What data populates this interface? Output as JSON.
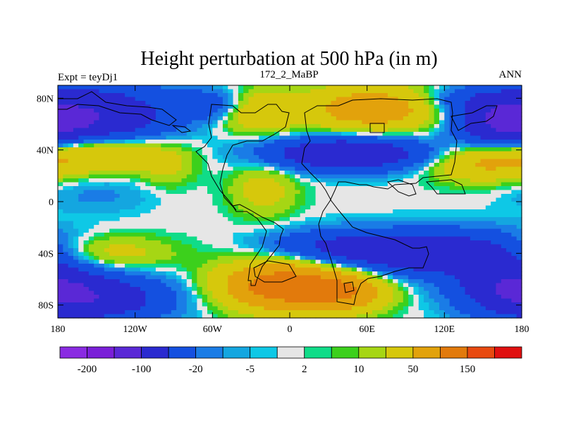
{
  "chart_data": {
    "type": "heatmap",
    "title": "Height perturbation at 500 hPa (in m)",
    "left_string": "Expt = teyDj1",
    "center_string": "172_2_MaBP",
    "right_string": "ANN",
    "xlim": [
      -180,
      180
    ],
    "ylim": [
      -90,
      90
    ],
    "x_ticks": [
      {
        "value": -180,
        "label": "180"
      },
      {
        "value": -120,
        "label": "120W"
      },
      {
        "value": -60,
        "label": "60W"
      },
      {
        "value": 0,
        "label": "0"
      },
      {
        "value": 60,
        "label": "60E"
      },
      {
        "value": 120,
        "label": "120E"
      },
      {
        "value": 180,
        "label": "180"
      }
    ],
    "y_ticks": [
      {
        "value": 80,
        "label": "80N"
      },
      {
        "value": 40,
        "label": "40N"
      },
      {
        "value": 0,
        "label": "0"
      },
      {
        "value": -40,
        "label": "40S"
      },
      {
        "value": -80,
        "label": "80S"
      }
    ],
    "colorbar": {
      "colors": [
        "#8a2be2",
        "#7a1fd8",
        "#5a28d6",
        "#2a2ad0",
        "#1450e0",
        "#1a7ce6",
        "#14a6e0",
        "#0ec8e6",
        "#e6e6e6",
        "#10dc88",
        "#3cd01c",
        "#a6d614",
        "#d6c80c",
        "#e2a20c",
        "#e27a0c",
        "#e84a10",
        "#e01010"
      ],
      "labels": [
        {
          "after_box": 1,
          "text": "-200"
        },
        {
          "after_box": 3,
          "text": "-100"
        },
        {
          "after_box": 5,
          "text": "-20"
        },
        {
          "after_box": 7,
          "text": "-5"
        },
        {
          "after_box": 9,
          "text": "2"
        },
        {
          "after_box": 11,
          "text": "10"
        },
        {
          "after_box": 13,
          "text": "50"
        },
        {
          "after_box": 15,
          "text": "150"
        }
      ]
    },
    "anomaly_centers": [
      {
        "lon": -150,
        "lat": 65,
        "value": -90,
        "sx": 40,
        "sy": 18
      },
      {
        "lon": -150,
        "lat": 38,
        "value": 70,
        "sx": 40,
        "sy": 10
      },
      {
        "lon": -150,
        "lat": 5,
        "value": -12,
        "sx": 30,
        "sy": 10
      },
      {
        "lon": -150,
        "lat": -40,
        "value": 50,
        "sx": 38,
        "sy": 10
      },
      {
        "lon": -150,
        "lat": -75,
        "value": -80,
        "sx": 40,
        "sy": 13
      },
      {
        "lon": -60,
        "lat": 75,
        "value": -40,
        "sx": 22,
        "sy": 8
      },
      {
        "lon": -25,
        "lat": 70,
        "value": 50,
        "sx": 20,
        "sy": 11
      },
      {
        "lon": -20,
        "lat": 10,
        "value": 30,
        "sx": 18,
        "sy": 15
      },
      {
        "lon": -95,
        "lat": 25,
        "value": 20,
        "sx": 14,
        "sy": 10
      },
      {
        "lon": -5,
        "lat": -65,
        "value": 140,
        "sx": 32,
        "sy": 13
      },
      {
        "lon": 45,
        "lat": -70,
        "value": 80,
        "sx": 22,
        "sy": 10
      },
      {
        "lon": 30,
        "lat": -35,
        "value": -40,
        "sx": 35,
        "sy": 9
      },
      {
        "lon": 65,
        "lat": 72,
        "value": 80,
        "sx": 38,
        "sy": 12
      },
      {
        "lon": 45,
        "lat": 37,
        "value": -100,
        "sx": 45,
        "sy": 9
      },
      {
        "lon": 120,
        "lat": -40,
        "value": -90,
        "sx": 60,
        "sy": 12
      },
      {
        "lon": 170,
        "lat": -65,
        "value": -70,
        "sx": 28,
        "sy": 14
      },
      {
        "lon": 150,
        "lat": 30,
        "value": 55,
        "sx": 30,
        "sy": 10
      },
      {
        "lon": 165,
        "lat": 60,
        "value": -80,
        "sx": 25,
        "sy": 15
      },
      {
        "lon": 130,
        "lat": 78,
        "value": -30,
        "sx": 25,
        "sy": 8
      }
    ]
  }
}
